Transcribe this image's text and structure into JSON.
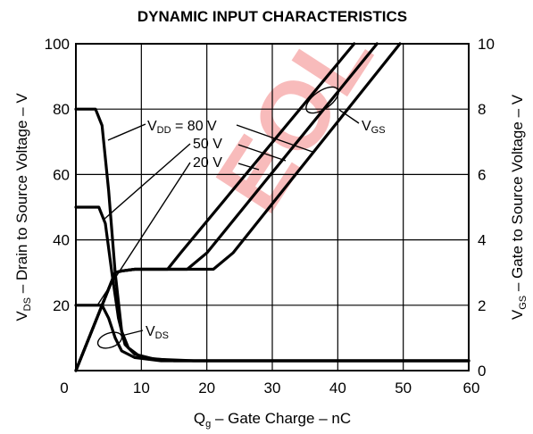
{
  "chart_data": {
    "type": "line",
    "title": "DYNAMIC INPUT CHARACTERISTICS",
    "xlabel": {
      "main": "Q",
      "sub": "g",
      "rest": " – Gate Charge – nC"
    },
    "ylabel_left": {
      "main": "V",
      "sub": "DS",
      "rest": " – Drain to Source Voltage – V"
    },
    "ylabel_right": {
      "main": "V",
      "sub": "GS",
      "rest": " – Gate to Source Voltage – V"
    },
    "xlim": [
      0,
      60
    ],
    "ylim_left": [
      0,
      100
    ],
    "ylim_right": [
      0,
      10
    ],
    "x_ticks": [
      "0",
      "10",
      "20",
      "30",
      "40",
      "50",
      "60"
    ],
    "y_left_ticks": [
      "20",
      "40",
      "60",
      "80",
      "100"
    ],
    "y_right_ticks": [
      "0",
      "2",
      "4",
      "6",
      "8",
      "10"
    ],
    "grid": true,
    "series": [
      {
        "group": "VDS",
        "vdd": "80 V",
        "axis": "left",
        "points": [
          [
            0,
            80
          ],
          [
            3,
            80
          ],
          [
            4,
            75
          ],
          [
            5,
            55
          ],
          [
            6,
            30
          ],
          [
            7,
            12
          ],
          [
            8,
            7
          ],
          [
            10,
            4
          ],
          [
            15,
            3
          ],
          [
            60,
            3
          ]
        ]
      },
      {
        "group": "VDS",
        "vdd": "50 V",
        "axis": "left",
        "points": [
          [
            0,
            50
          ],
          [
            3.5,
            50
          ],
          [
            4.5,
            45
          ],
          [
            5.5,
            30
          ],
          [
            6.5,
            16
          ],
          [
            7.5,
            8
          ],
          [
            9,
            5
          ],
          [
            12,
            3.5
          ],
          [
            18,
            3
          ],
          [
            60,
            3
          ]
        ]
      },
      {
        "group": "VDS",
        "vdd": "20 V",
        "axis": "left",
        "points": [
          [
            0,
            20
          ],
          [
            4,
            20
          ],
          [
            5,
            16
          ],
          [
            6,
            10
          ],
          [
            7,
            6
          ],
          [
            9,
            4
          ],
          [
            13,
            3
          ],
          [
            60,
            3
          ]
        ]
      },
      {
        "group": "VGS",
        "vdd": "80 V",
        "axis": "right",
        "points": [
          [
            0,
            0
          ],
          [
            6,
            3
          ],
          [
            7,
            3.05
          ],
          [
            9,
            3.1
          ],
          [
            21,
            3.1
          ],
          [
            24,
            3.6
          ],
          [
            49.5,
            10
          ]
        ]
      },
      {
        "group": "VGS",
        "vdd": "50 V",
        "axis": "right",
        "points": [
          [
            0,
            0
          ],
          [
            6,
            3
          ],
          [
            7,
            3.05
          ],
          [
            9,
            3.1
          ],
          [
            17,
            3.1
          ],
          [
            20,
            3.6
          ],
          [
            46,
            10
          ]
        ]
      },
      {
        "group": "VGS",
        "vdd": "20 V",
        "axis": "right",
        "points": [
          [
            0,
            0
          ],
          [
            6,
            3
          ],
          [
            7,
            3.05
          ],
          [
            9,
            3.1
          ],
          [
            14,
            3.1
          ],
          [
            16,
            3.6
          ],
          [
            42.5,
            10
          ]
        ]
      }
    ],
    "annotations": {
      "vdd_80": {
        "pre": "V",
        "sub": "DD",
        "post": " = 80 V"
      },
      "vdd_50": "50 V",
      "vdd_20": "20 V",
      "vgs": {
        "main": "V",
        "sub": "GS"
      },
      "vds": {
        "main": "V",
        "sub": "DS"
      }
    },
    "watermark": "EOL"
  }
}
